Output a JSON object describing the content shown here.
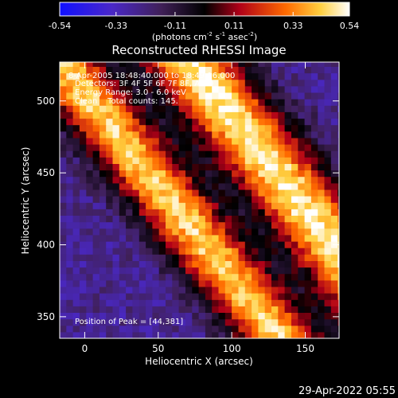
{
  "colorbar": {
    "ticks": [
      "-0.54",
      "-0.33",
      "-0.11",
      "0.11",
      "0.33",
      "0.54"
    ],
    "range": [
      -0.54,
      0.54
    ],
    "label_parts": [
      "(photons cm",
      "-2",
      " s",
      "-1",
      " asec",
      "-2",
      ")"
    ],
    "colors": [
      "#1010ff",
      "#5030c0",
      "#3a1a50",
      "#000000",
      "#a0001a",
      "#ff6a00",
      "#ffd040",
      "#ffffff"
    ]
  },
  "chart_data": {
    "type": "heatmap",
    "title": "Reconstructed RHESSI Image",
    "xlabel": "Heliocentric X (arcsec)",
    "ylabel": "Heliocentric Y (arcsec)",
    "xlim": [
      -17,
      173
    ],
    "ylim": [
      335,
      527
    ],
    "xticks": [
      0,
      50,
      100,
      150
    ],
    "yticks": [
      350,
      400,
      450,
      500
    ],
    "annotations": [
      "8-Apr-2005 18:48:40.000 to 18:49:16.000",
      "Detectors: 3F 4F 5F 6F 7F 8F, Att 0",
      "Energy Range: 3.0 - 6.0 keV",
      "Clean    Total counts: 145."
    ],
    "position_label": "Position of Peak = [44,381]",
    "peak": {
      "x": 44,
      "y": 381
    },
    "bands": [
      {
        "intercept": 500,
        "slope": -1.28,
        "width": 24,
        "amplitude": 0.5
      },
      {
        "intercept": 615,
        "slope": -1.3,
        "width": 28,
        "amplitude": 0.54
      }
    ],
    "background": -0.25,
    "footer": "29-Apr-2022 05:55"
  }
}
